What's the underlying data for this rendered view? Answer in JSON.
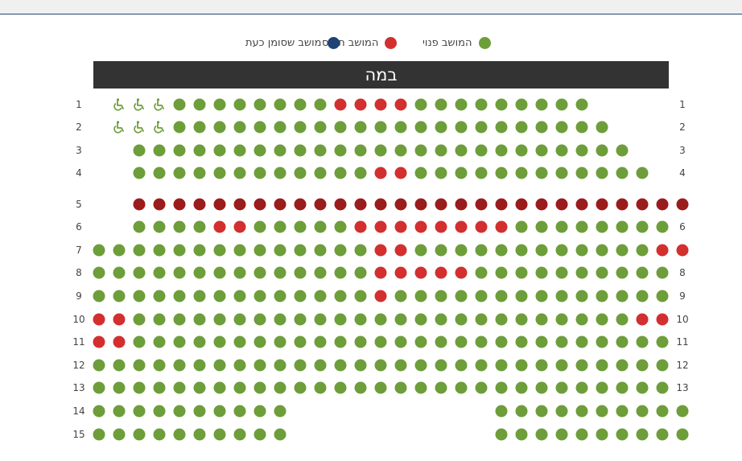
{
  "colors": {
    "available": "#6d9e3a",
    "taken": "#d32f2f",
    "selected": "#1f4275",
    "row5": "#9b1c1c",
    "stage_bg": "#333333",
    "topbar_border": "#25456e"
  },
  "legend": [
    {
      "label": "המושב פנוי",
      "color": "#6d9e3a"
    },
    {
      "label": "המושב תפוס",
      "color": "#d32f2f"
    },
    {
      "label": "מושב שסומן כעת",
      "color": "#1f4275"
    }
  ],
  "stage": {
    "label": "במה"
  },
  "icons": {
    "accessible_seat": "wheelchair-icon",
    "seat": "circle"
  },
  "rows": [
    {
      "label": "1",
      "seats": "....aaaaaaaattttaaaaaaaaa."
    },
    {
      "label": "2",
      "seats": "....aaaaaaaaaaaaaaaaaaaaaa"
    },
    {
      "label": "3",
      "seats": "..aaaaaaaaaaaaaaaaaaaaaaaaa"
    },
    {
      "label": "4",
      "seats": "..aaaaaaaaaaaattaaaaaaaaaaaa"
    },
    {
      "label": "5",
      "seats": "..dddddddddddddddddddddddddddd"
    },
    {
      "label": "6",
      "seats": "..aaaattaaaaattttttttaaaaaaaa"
    },
    {
      "label": "7",
      "seats": "aaaaaaaaaaaaaattaaaaaaaaaaaatt"
    },
    {
      "label": "8",
      "seats": "aaaaaaaaaaaaaatttttaaaaaaaaaa"
    },
    {
      "label": "9",
      "seats": "aaaaaaaaaaaaaataaaaaaaaaaaaaa"
    },
    {
      "label": "10",
      "seats": "ttaaaaaaaaaaaaaaaaaaaaaaaaatt"
    },
    {
      "label": "11",
      "seats": "ttaaaaaaaaaaaaaaaaaaaaaaaaaaa"
    },
    {
      "label": "12",
      "seats": "aaaaaaaaaaaaaaaaaaaaaaaaaaaaa"
    },
    {
      "label": "13",
      "seats": "aaaaaaaaaaaaaaaaaaaaaaaaaaaaa"
    },
    {
      "label": "14",
      "seats": "aaaaaaaaaa          aaaaaaaaaa"
    },
    {
      "label": "15",
      "seats": "aaaaaaaaaa          aaaaaaaaaa"
    }
  ]
}
